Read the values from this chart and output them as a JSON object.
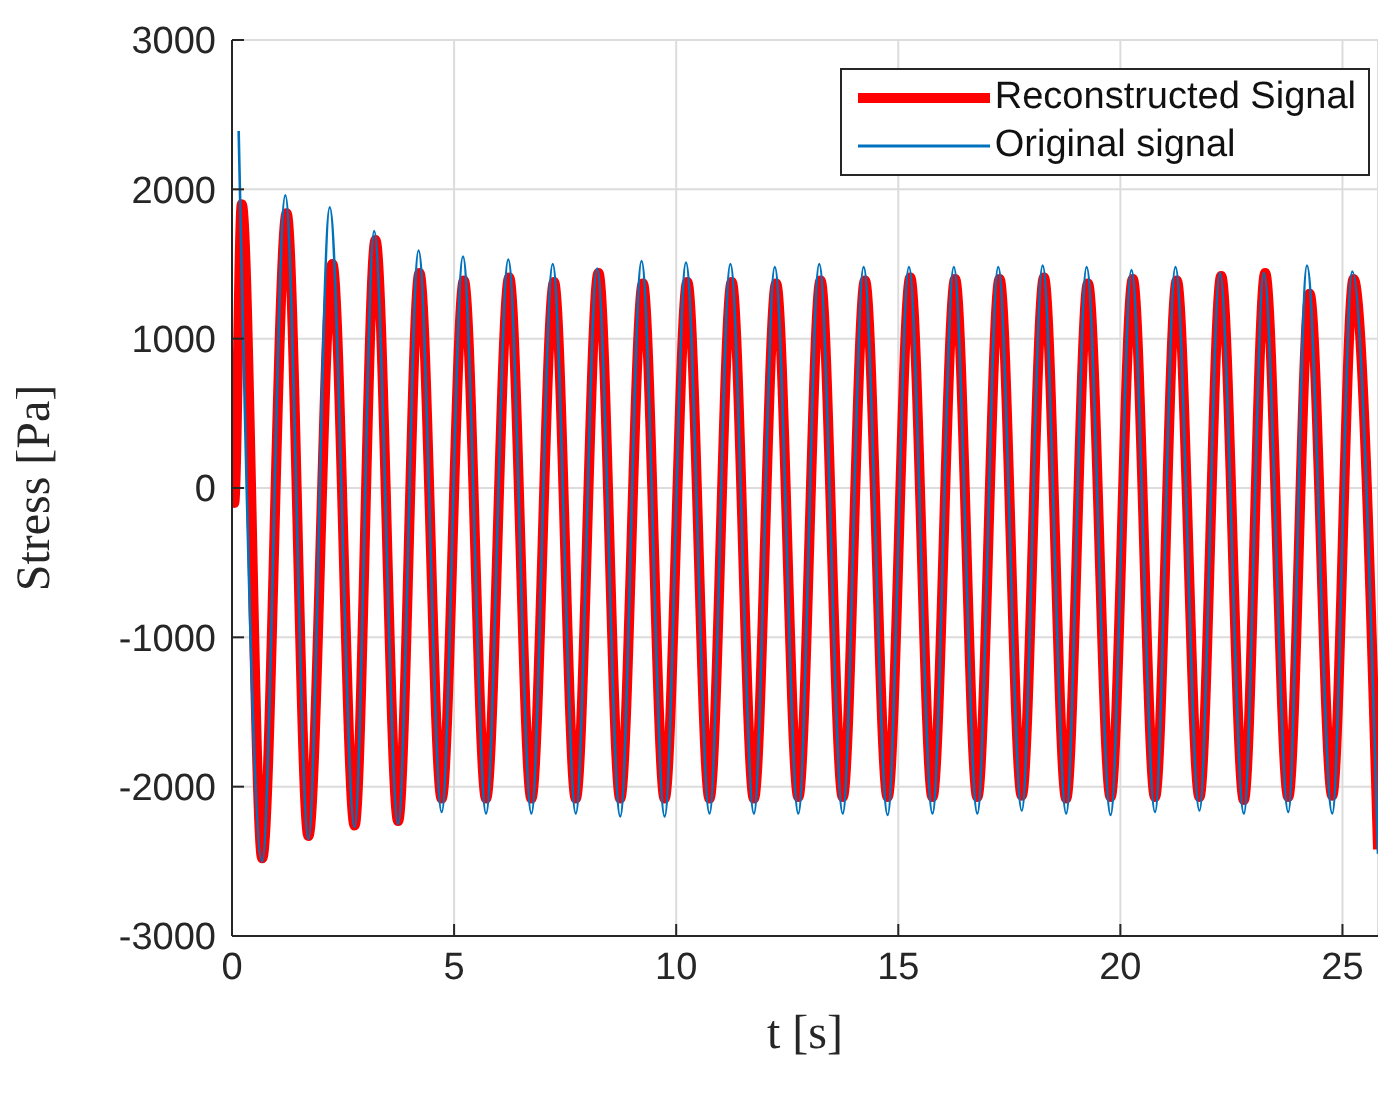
{
  "chart_data": {
    "type": "line",
    "xlabel": "t [s]",
    "ylabel": "Stress [Pa]",
    "xlim": [
      0,
      25.8
    ],
    "xticks": [
      0,
      5,
      10,
      15,
      20,
      25
    ],
    "ylim": [
      -3000,
      3000
    ],
    "yticks": [
      -3000,
      -2000,
      -1000,
      0,
      1000,
      2000,
      3000
    ],
    "grid": true,
    "legend": "top right",
    "series": [
      {
        "name": "Reconstructed Signal",
        "color": "#ff0000",
        "x": [
          0,
          0.05,
          0.22,
          0.68,
          1.23,
          1.72,
          2.26,
          2.76,
          3.23,
          3.74,
          4.22,
          4.72,
          5.22,
          5.72,
          6.24,
          6.74,
          7.25,
          7.74,
          8.25,
          8.74,
          9.25,
          9.74,
          10.25,
          10.75,
          11.25,
          11.75,
          12.25,
          12.75,
          13.25,
          13.75,
          14.25,
          14.76,
          15.27,
          15.77,
          16.28,
          16.78,
          17.28,
          17.78,
          18.28,
          18.78,
          19.27,
          19.78,
          20.28,
          20.78,
          21.27,
          21.78,
          22.27,
          22.78,
          23.26,
          23.78,
          24.26,
          24.77,
          25.25,
          25.8
        ],
        "values": [
          200,
          -100,
          1900,
          -2480,
          1840,
          -2330,
          1500,
          -2260,
          1660,
          -2230,
          1440,
          -2080,
          1390,
          -2080,
          1410,
          -2080,
          1380,
          -2080,
          1440,
          -2080,
          1370,
          -2080,
          1380,
          -2080,
          1380,
          -2080,
          1370,
          -2070,
          1390,
          -2070,
          1390,
          -2070,
          1410,
          -2070,
          1400,
          -2070,
          1400,
          -2060,
          1410,
          -2080,
          1370,
          -2070,
          1400,
          -2070,
          1390,
          -2070,
          1420,
          -2090,
          1440,
          -2070,
          1300,
          -2060,
          1400,
          -2420
        ]
      },
      {
        "name": "Original signal",
        "color": "#0072bd",
        "x": [
          0.15,
          0.68,
          1.2,
          1.72,
          2.2,
          2.76,
          3.2,
          3.74,
          4.2,
          4.72,
          5.2,
          5.72,
          6.22,
          6.74,
          7.22,
          7.74,
          8.22,
          8.74,
          9.22,
          9.74,
          10.22,
          10.75,
          11.22,
          11.75,
          12.22,
          12.75,
          13.22,
          13.75,
          14.22,
          14.76,
          15.24,
          15.77,
          16.25,
          16.78,
          17.25,
          17.78,
          18.25,
          18.78,
          19.24,
          19.78,
          20.25,
          20.78,
          21.24,
          21.78,
          22.24,
          22.78,
          23.23,
          23.78,
          24.2,
          24.77,
          25.22,
          25.8
        ],
        "values": [
          2390,
          -2500,
          1960,
          -2350,
          1880,
          -2270,
          1720,
          -2250,
          1590,
          -2170,
          1550,
          -2180,
          1530,
          -2180,
          1500,
          -2180,
          1470,
          -2200,
          1520,
          -2200,
          1510,
          -2180,
          1500,
          -2180,
          1480,
          -2180,
          1500,
          -2180,
          1480,
          -2190,
          1480,
          -2180,
          1480,
          -2180,
          1480,
          -2160,
          1490,
          -2180,
          1480,
          -2190,
          1460,
          -2170,
          1480,
          -2160,
          1440,
          -2180,
          1440,
          -2170,
          1490,
          -2180,
          1450,
          -2450
        ]
      }
    ]
  }
}
